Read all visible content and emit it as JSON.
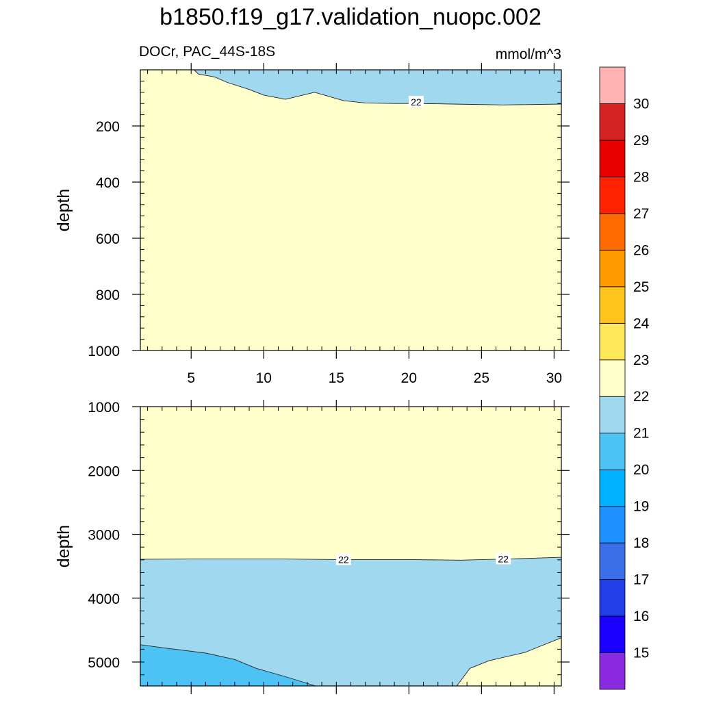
{
  "chart_data": {
    "type": "contour",
    "title": "b1850.f19_g17.validation_nuopc.002",
    "left_label": "DOCr, PAC_44S-18S",
    "units": "mmol/m^3",
    "x": {
      "range": [
        1.5,
        30.5
      ],
      "ticks": [
        5,
        10,
        15,
        20,
        25,
        30
      ],
      "tick_labels": [
        "5",
        "10",
        "15",
        "20",
        "25",
        "30"
      ]
    },
    "colorbar": {
      "levels": [
        "15",
        "16",
        "17",
        "18",
        "19",
        "20",
        "21",
        "22",
        "23",
        "24",
        "25",
        "26",
        "27",
        "28",
        "29",
        "30"
      ],
      "colors": [
        "#8a2be2",
        "#1c00ff",
        "#2240ea",
        "#3b6fe8",
        "#1e90ff",
        "#00b2ff",
        "#4dc3f5",
        "#a0d8ef",
        "#ffffcc",
        "#ffe95a",
        "#ffc31e",
        "#ff9900",
        "#ff6a00",
        "#ff2200",
        "#e80000",
        "#d42222",
        "#ffb2b2"
      ]
    },
    "panels": [
      {
        "name": "upper",
        "ylabel": "depth",
        "ylim": [
          1000,
          0
        ],
        "yticks": [
          200,
          400,
          600,
          800,
          1000
        ],
        "ytick_labels": [
          "200",
          "400",
          "600",
          "800",
          "1000"
        ],
        "background_level": "22-23",
        "regions": [
          {
            "level": "21-22",
            "boundary_22": [
              [
                5.2,
                0
              ],
              [
                5.5,
                15
              ],
              [
                6.6,
                25
              ],
              [
                7.5,
                45
              ],
              [
                9.0,
                70
              ],
              [
                10.0,
                90
              ],
              [
                11.5,
                105
              ],
              [
                13.5,
                80
              ],
              [
                15.5,
                110
              ],
              [
                17.0,
                118
              ],
              [
                19.0,
                120
              ],
              [
                20.5,
                120
              ],
              [
                23.0,
                122
              ],
              [
                26.5,
                125
              ],
              [
                30.5,
                122
              ]
            ]
          }
        ],
        "contour_labels": [
          {
            "text": "22",
            "x": 20.5,
            "y": 115
          }
        ]
      },
      {
        "name": "lower",
        "ylabel": "depth",
        "ylim": [
          5375,
          1000
        ],
        "yticks": [
          1000,
          2000,
          3000,
          4000,
          5000
        ],
        "ytick_labels": [
          "1000",
          "2000",
          "3000",
          "4000",
          "5000"
        ],
        "background_level": "21-22",
        "regions": [
          {
            "level": "22-23",
            "boundary_22_upper": [
              [
                1.5,
                3390
              ],
              [
                6,
                3385
              ],
              [
                11,
                3385
              ],
              [
                15,
                3395
              ],
              [
                20,
                3395
              ],
              [
                23.5,
                3405
              ],
              [
                27,
                3385
              ],
              [
                30.5,
                3360
              ]
            ]
          },
          {
            "level": "20-21",
            "boundary_21": [
              [
                1.5,
                4730
              ],
              [
                3.5,
                4790
              ],
              [
                6.0,
                4860
              ],
              [
                8.0,
                4960
              ],
              [
                9.5,
                5100
              ],
              [
                11.5,
                5230
              ],
              [
                13.5,
                5370
              ]
            ]
          },
          {
            "level": "22-23",
            "boundary_22_lower": [
              [
                23.3,
                5375
              ],
              [
                24.2,
                5100
              ],
              [
                25.5,
                4980
              ],
              [
                28.0,
                4850
              ],
              [
                30.5,
                4620
              ]
            ]
          }
        ],
        "contour_labels": [
          {
            "text": "22",
            "x": 15.5,
            "y": 3395
          },
          {
            "text": "22",
            "x": 26.5,
            "y": 3385
          }
        ]
      }
    ]
  }
}
